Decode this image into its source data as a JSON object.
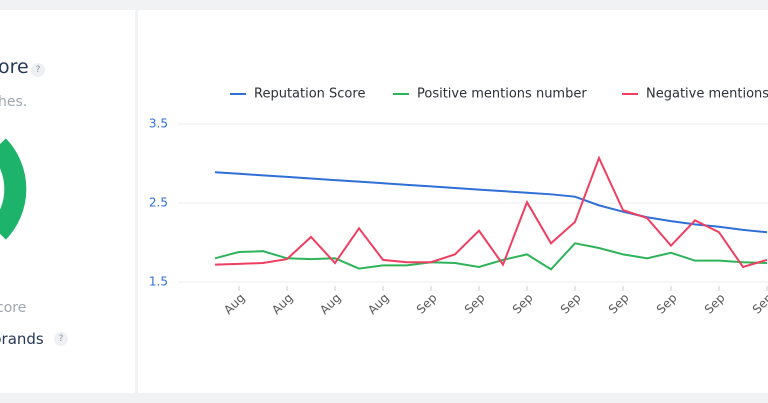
{
  "panel": {
    "title": "ore",
    "help": "?",
    "subtitle": "hes.",
    "score_label": "core",
    "brands": "brands",
    "brands_help": "?"
  },
  "chart_data": {
    "type": "line",
    "categories": [
      null,
      "Aug",
      null,
      "Aug",
      null,
      "Aug",
      null,
      "Aug",
      null,
      "Sep",
      null,
      "Sep",
      null,
      "Sep",
      null,
      "Sep",
      null,
      "Sep",
      null,
      "Sep",
      null,
      "Sep",
      null,
      "Sep"
    ],
    "series": [
      {
        "name": "Reputation Score",
        "color": "#2f6fd6",
        "values": [
          2.89,
          2.87,
          2.85,
          2.83,
          2.81,
          2.79,
          2.77,
          2.75,
          2.73,
          2.71,
          2.69,
          2.67,
          2.65,
          2.63,
          2.61,
          2.58,
          2.47,
          2.39,
          2.32,
          2.27,
          2.23,
          2.2,
          2.16,
          2.13
        ]
      },
      {
        "name": "Positive mentions number",
        "color": "#2fb35a",
        "values": [
          1.8,
          1.88,
          1.89,
          1.8,
          1.79,
          1.8,
          1.67,
          1.71,
          1.71,
          1.75,
          1.74,
          1.69,
          1.78,
          1.85,
          1.66,
          1.99,
          1.93,
          1.85,
          1.8,
          1.87,
          1.77,
          1.77,
          1.75,
          1.74
        ]
      },
      {
        "name": "Negative mentions number",
        "color": "#ee3f62",
        "values": [
          1.72,
          1.73,
          1.74,
          1.79,
          2.07,
          1.74,
          2.18,
          1.78,
          1.75,
          1.75,
          1.85,
          2.15,
          1.72,
          2.51,
          1.99,
          2.26,
          3.07,
          2.41,
          2.31,
          1.96,
          2.28,
          2.13,
          1.69,
          1.78
        ]
      }
    ],
    "ylim": [
      1.5,
      3.5
    ],
    "yticks": [
      1.5,
      2.5,
      3.5
    ],
    "grid": true
  }
}
